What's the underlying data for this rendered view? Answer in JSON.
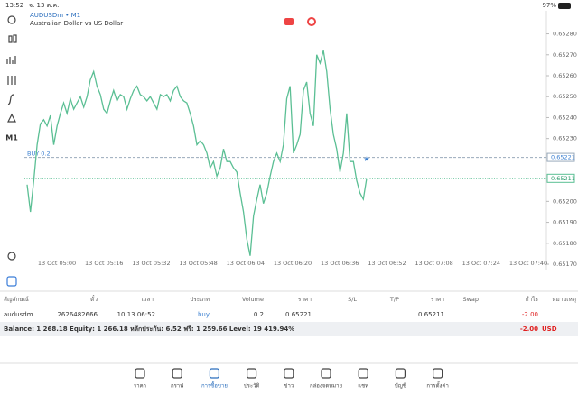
{
  "status": {
    "time": "13:52",
    "date": "จ. 13 ต.ค.",
    "battery": "97%"
  },
  "symbol_header": {
    "title": "AUDUSDm • M1",
    "subtitle": "Australian Dollar vs US Dollar"
  },
  "toolbar": {
    "timeframe": "M1"
  },
  "chart": {
    "type": "line",
    "color": "#5bbf94",
    "values": [
      0.65208,
      0.65195,
      0.6521,
      0.65227,
      0.65237,
      0.65239,
      0.65236,
      0.65241,
      0.65227,
      0.65236,
      0.65242,
      0.65247,
      0.65242,
      0.65249,
      0.65244,
      0.65247,
      0.6525,
      0.65245,
      0.6525,
      0.65258,
      0.65262,
      0.65255,
      0.65251,
      0.65244,
      0.65242,
      0.65248,
      0.65253,
      0.65248,
      0.65251,
      0.6525,
      0.65244,
      0.65249,
      0.65253,
      0.65255,
      0.65251,
      0.6525,
      0.65248,
      0.6525,
      0.65247,
      0.65244,
      0.65251,
      0.6525,
      0.65251,
      0.65248,
      0.65253,
      0.65255,
      0.6525,
      0.65248,
      0.65247,
      0.65242,
      0.65236,
      0.65227,
      0.65229,
      0.65227,
      0.65223,
      0.65216,
      0.65219,
      0.65212,
      0.65216,
      0.65225,
      0.65219,
      0.65219,
      0.65216,
      0.65214,
      0.65204,
      0.65195,
      0.65182,
      0.65174,
      0.65193,
      0.65201,
      0.65208,
      0.65199,
      0.65204,
      0.65212,
      0.65219,
      0.65223,
      0.65219,
      0.65227,
      0.65249,
      0.65255,
      0.65223,
      0.65227,
      0.65232,
      0.65253,
      0.65257,
      0.65242,
      0.65236,
      0.6527,
      0.65266,
      0.65272,
      0.65262,
      0.65244,
      0.65232,
      0.65225,
      0.65214,
      0.65223,
      0.65242,
      0.65219,
      0.65219,
      0.6521,
      0.65204,
      0.65201,
      0.65211
    ],
    "ylim": [
      0.65167,
      0.65291
    ],
    "yticks": [
      {
        "value": 0.6528,
        "label": "0.65280"
      },
      {
        "value": 0.6527,
        "label": "0.65270"
      },
      {
        "value": 0.6526,
        "label": "0.65260"
      },
      {
        "value": 0.6525,
        "label": "0.65250"
      },
      {
        "value": 0.6524,
        "label": "0.65240"
      },
      {
        "value": 0.6523,
        "label": "0.65230"
      },
      {
        "value": 0.652,
        "label": "0.65200"
      },
      {
        "value": 0.6519,
        "label": "0.65190"
      },
      {
        "value": 0.6518,
        "label": "0.65180"
      },
      {
        "value": 0.6517,
        "label": "0.65170"
      }
    ],
    "xlabels": [
      "13 Oct 05:00",
      "13 Oct 05:16",
      "13 Oct 05:32",
      "13 Oct 05:48",
      "13 Oct 06:04",
      "13 Oct 06:20",
      "13 Oct 06:36",
      "13 Oct 06:52",
      "13 Oct 07:08",
      "13 Oct 07:24",
      "13 Oct 07:40"
    ],
    "buy_label": "BUY 0.2",
    "buy_price": 0.65221,
    "bid_price": 0.65211
  },
  "table": {
    "headers": [
      "สัญลักษณ์",
      "ตั๋ว",
      "เวลา",
      "ประเภท",
      "Volume",
      "ราคา",
      "S/L",
      "T/P",
      "ราคา",
      "Swap",
      "กำไร",
      "หมายเหตุ"
    ],
    "row": {
      "symbol": "audusdm",
      "ticket": "2626482666",
      "time": "10.13 06:52",
      "type": "buy",
      "volume": "0.2",
      "price": "0.65221",
      "current_price": "0.65211",
      "profit": "-2.00"
    }
  },
  "balance": {
    "text": "Balance: 1 268.18 Equity: 1 266.18 หลักประกัน: 6.52 ฟรี: 1 259.66 Level: 19 419.94%",
    "profit": "-2.00",
    "currency": "USD"
  },
  "tabs": [
    "ราคา",
    "กราฟ",
    "การซื้อขาย",
    "ประวัติ",
    "ข่าว",
    "กล่องจดหมาย",
    "แชท",
    "บัญชี",
    "การตั้งค่า"
  ]
}
